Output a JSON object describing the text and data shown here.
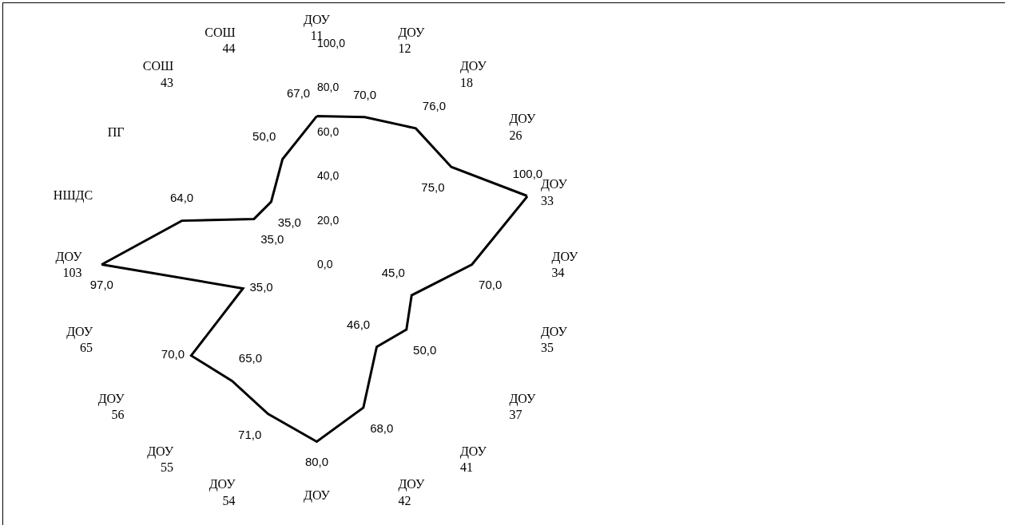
{
  "chart_data": {
    "type": "radar",
    "categories": [
      "ДОУ 11",
      "ДОУ 12",
      "ДОУ 18",
      "ДОУ 26",
      "ДОУ 33",
      "ДОУ 34",
      "ДОУ 35",
      "ДОУ 37",
      "ДОУ 41",
      "ДОУ 42",
      "ДОУ",
      "ДОУ 54",
      "ДОУ 55",
      "ДОУ 56",
      "ДОУ 65",
      "ДОУ 103",
      "НШДС",
      "ПГ",
      "СОШ 43",
      "СОШ 44"
    ],
    "series": [
      {
        "color": "#000000",
        "values": [
          67,
          70,
          76,
          75,
          100,
          70,
          45,
          50,
          46,
          68,
          80,
          71,
          65,
          70,
          35,
          97,
          64,
          35,
          35,
          50
        ],
        "value_labels": [
          "67,0",
          "70,0",
          "76,0",
          "75,0",
          "100,0",
          "70,0",
          "45,0",
          "50,0",
          "46,0",
          "68,0",
          "80,0",
          "71,0",
          "65,0",
          "70,0",
          "35,0",
          "97,0",
          "64,0",
          "35,0",
          "35,0",
          "50,0"
        ]
      }
    ],
    "ylim": [
      0,
      100
    ],
    "yticks": [
      {
        "value": 0,
        "label": "0,0"
      },
      {
        "value": 20,
        "label": "20,0"
      },
      {
        "value": 40,
        "label": "40,0"
      },
      {
        "value": 60,
        "label": "60,0"
      },
      {
        "value": 80,
        "label": "80,0"
      },
      {
        "value": 100,
        "label": "100,0"
      }
    ],
    "grid": false
  }
}
